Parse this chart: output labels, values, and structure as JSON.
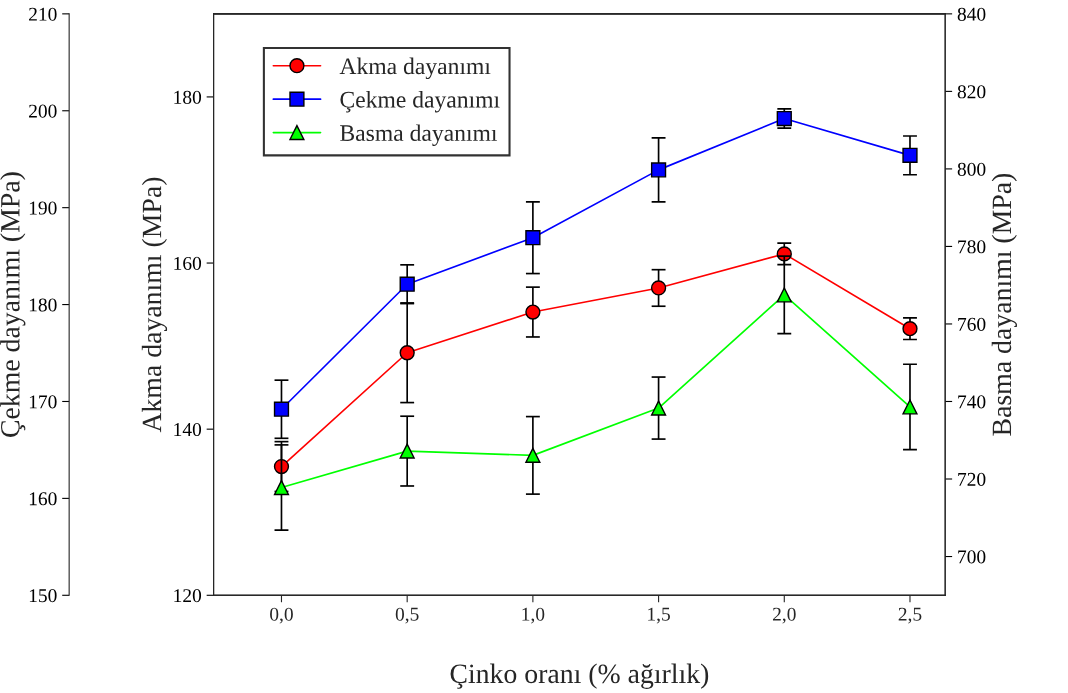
{
  "chart_data": {
    "type": "line",
    "xlabel": "Çinko oranı (% ağırlık)",
    "ylabel": "Akma dayanımı (MPa)",
    "y2label": "Basma dayanımı (MPa)",
    "y3label": "Çekme dayanımı (MPa)",
    "x": [
      0.0,
      0.5,
      1.0,
      1.5,
      2.0,
      2.5
    ],
    "xlim": [
      -0.27,
      2.64
    ],
    "xticks": [
      {
        "value": 0.0,
        "label": "0,0"
      },
      {
        "value": 0.5,
        "label": "0,5"
      },
      {
        "value": 1.0,
        "label": "1,0"
      },
      {
        "value": 1.5,
        "label": "1,5"
      },
      {
        "value": 2.0,
        "label": "2,0"
      },
      {
        "value": 2.5,
        "label": "2,5"
      }
    ],
    "ylim": [
      120,
      190
    ],
    "yticks": [
      120,
      140,
      160,
      180
    ],
    "y2lim": [
      690,
      840
    ],
    "y2ticks": [
      700,
      720,
      740,
      760,
      780,
      800,
      820,
      840
    ],
    "y3lim": [
      150,
      210
    ],
    "y3ticks": [
      150,
      160,
      170,
      180,
      190,
      200,
      210
    ],
    "legend": "top left",
    "grid": false,
    "line_style": "solid",
    "series": [
      {
        "name": "Akma dayanımı",
        "color": "#ff0000",
        "marker": "circle",
        "axis": "y",
        "values": [
          135.5,
          149.2,
          154.1,
          157.0,
          161.1,
          152.1
        ],
        "errors": [
          3,
          6,
          3,
          2.2,
          1.3,
          1.3
        ]
      },
      {
        "name": "Çekme dayanımı",
        "color": "#0000ff",
        "marker": "square",
        "axis": "y3",
        "values": [
          169.2,
          182.1,
          186.9,
          193.9,
          199.2,
          195.4
        ],
        "errors": [
          3,
          2,
          3.7,
          3.3,
          1,
          2
        ]
      },
      {
        "name": "Basma dayanımı",
        "color": "#00ff00",
        "marker": "triangle",
        "axis": "y2",
        "values": [
          717.8,
          727.2,
          726.1,
          738.3,
          767.5,
          738.6
        ],
        "errors": [
          11,
          9,
          10,
          8,
          10,
          11
        ]
      }
    ]
  }
}
